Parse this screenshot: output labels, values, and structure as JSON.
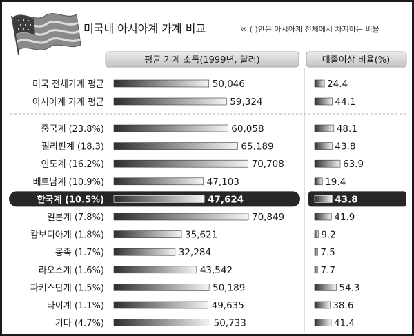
{
  "page": {
    "title": "미국내 아시아계 가계 비교",
    "note": "※ ( )안은 아시아계 전체에서 차지하는 비율"
  },
  "colors": {
    "bar_dark": "#2e2e2e",
    "bar_light": "#f4f4f4",
    "highlight_band": "#262626",
    "header_fill": "#d4d4d4",
    "flag_icon": "flag-usa-icon"
  },
  "chart_data": [
    {
      "type": "bar",
      "orientation": "horizontal",
      "title": "평균 가계 소득(1999년, 달러)",
      "categories": [
        "미국 전체가계 평균",
        "아시아계 가계 평균",
        "중국계 (23.8%)",
        "필리핀계 (18.3)",
        "인도계 (16.2%)",
        "베트남계 (10.9%)",
        "한국계 (10.5%)",
        "일본계 (7.8%)",
        "캄보디아계 (1.8%)",
        "몽족 (1.7%)",
        "라오스계 (1.6%)",
        "파키스탄계 (1.5%)",
        "타이계 (1.1%)",
        "기타 (4.7%)"
      ],
      "values": [
        50046,
        59324,
        60058,
        65189,
        70708,
        47103,
        47624,
        70849,
        35621,
        32284,
        43542,
        50189,
        49635,
        50733
      ],
      "value_labels": [
        "50,046",
        "59,324",
        "60,058",
        "65,189",
        "70,708",
        "47,103",
        "47,624",
        "70,849",
        "35,621",
        "32,284",
        "43,542",
        "50,189",
        "49,635",
        "50,733"
      ],
      "highlight_category": "한국계 (10.5%)",
      "grid": false
    },
    {
      "type": "bar",
      "orientation": "horizontal",
      "title": "대졸이상 비율(%)",
      "categories": [
        "미국 전체가계 평균",
        "아시아계 가계 평균",
        "중국계 (23.8%)",
        "필리핀계 (18.3)",
        "인도계 (16.2%)",
        "베트남계 (10.9%)",
        "한국계 (10.5%)",
        "일본계 (7.8%)",
        "캄보디아계 (1.8%)",
        "몽족 (1.7%)",
        "라오스계 (1.6%)",
        "파키스탄계 (1.5%)",
        "타이계 (1.1%)",
        "기타 (4.7%)"
      ],
      "values": [
        24.4,
        44.1,
        48.1,
        43.8,
        63.9,
        19.4,
        43.8,
        41.9,
        9.2,
        7.5,
        7.7,
        54.3,
        38.6,
        41.4
      ],
      "value_labels": [
        "24.4",
        "44.1",
        "48.1",
        "43.8",
        "63.9",
        "19.4",
        "43.8",
        "41.9",
        "9.2",
        "7.5",
        "7.7",
        "54.3",
        "38.6",
        "41.4"
      ],
      "highlight_category": "한국계 (10.5%)",
      "grid": false
    }
  ]
}
